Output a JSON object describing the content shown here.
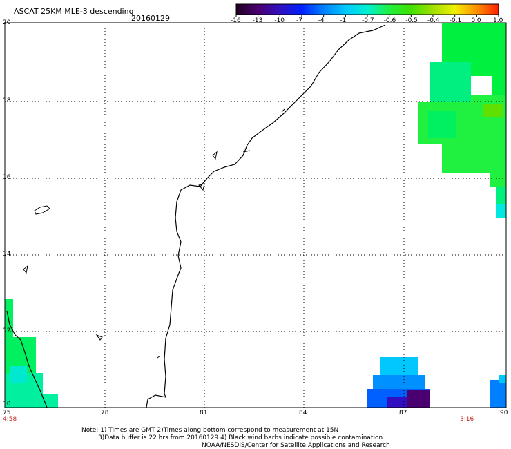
{
  "header": {
    "title": "ASCAT 25KM MLE-3 descending",
    "date": "20160129"
  },
  "colorbar": {
    "labels": [
      "-16",
      "-13",
      "-10",
      "-7",
      "-4",
      "-1",
      "-0.7",
      "-0.6",
      "-0.5",
      "-0.4",
      "-0.1",
      "0.0",
      "1.0"
    ],
    "colors": [
      "#200020",
      "#4a0070",
      "#3010c0",
      "#0020ff",
      "#0080ff",
      "#00c8ff",
      "#00f0d0",
      "#20f040",
      "#40e000",
      "#a0e000",
      "#f0f000",
      "#ff9000",
      "#ff2000"
    ]
  },
  "axes": {
    "x_ticks": [
      "75",
      "78",
      "81",
      "84",
      "87",
      "90"
    ],
    "y_ticks": [
      "20",
      "18",
      "16",
      "14",
      "12",
      "10"
    ]
  },
  "times": {
    "left": "4:58",
    "right": "3:16"
  },
  "notes": {
    "line1": "Note: 1) Times are GMT 2)Times along bottom correspond to measurement at 15N",
    "line2": "3)Data buffer is 22 hrs from 20160129 4) Black wind barbs indicate possible contamination",
    "line3": "NOAA/NESDIS/Center for Satellite Applications and Research"
  }
}
